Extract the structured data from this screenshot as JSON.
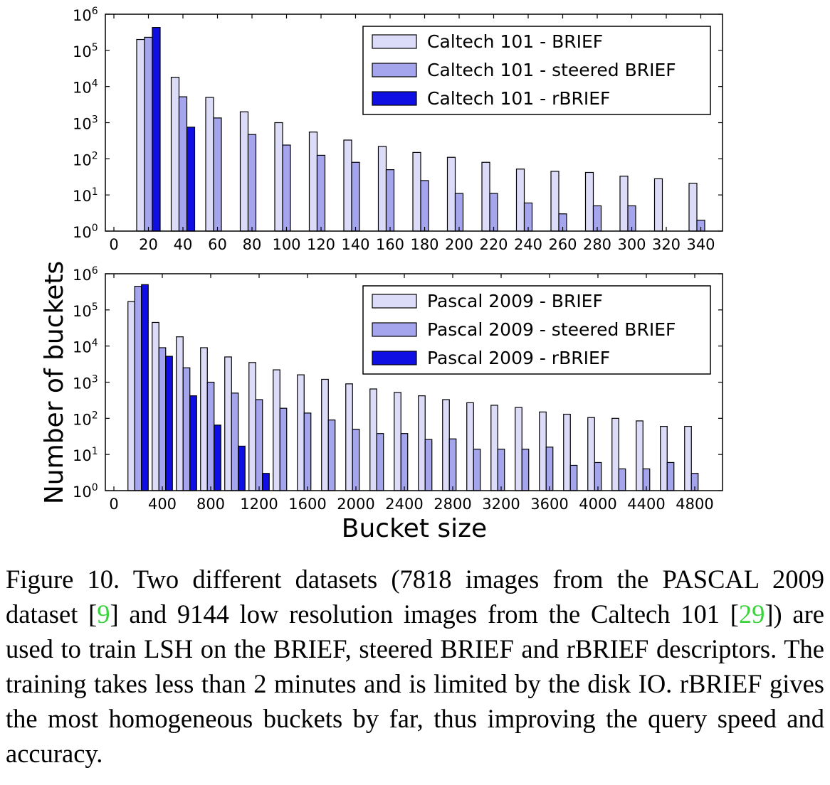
{
  "figure": {
    "ylabel": "Number of buckets",
    "xlabel": "Bucket size"
  },
  "chart_data": [
    {
      "type": "bar",
      "scale": "log",
      "x_ticks": [
        "0",
        "20",
        "40",
        "60",
        "80",
        "100",
        "120",
        "140",
        "160",
        "180",
        "200",
        "220",
        "240",
        "260",
        "280",
        "300",
        "320",
        "340"
      ],
      "ylim": [
        1,
        1000000
      ],
      "y_ticks": [
        "10",
        "10",
        "10",
        "10",
        "10",
        "10",
        "10"
      ],
      "y_tick_exponents": [
        "0",
        "1",
        "2",
        "3",
        "4",
        "5",
        "6"
      ],
      "legend_position": "upper-right",
      "x": [
        20,
        40,
        60,
        80,
        100,
        120,
        140,
        160,
        180,
        200,
        220,
        240,
        260,
        280,
        300,
        320,
        340
      ],
      "series": [
        {
          "name": "Caltech 101 - BRIEF",
          "color": "#dcdcf8",
          "values": [
            200000,
            18000,
            5000,
            2000,
            1000,
            550,
            330,
            220,
            150,
            110,
            80,
            52,
            45,
            42,
            33,
            28,
            21
          ]
        },
        {
          "name": "Caltech 101 - steered BRIEF",
          "color": "#a5a5ee",
          "values": [
            230000,
            5200,
            1350,
            470,
            240,
            125,
            80,
            50,
            25,
            11,
            11,
            6,
            3,
            5,
            5,
            null,
            2
          ]
        },
        {
          "name": "Caltech 101 - rBRIEF",
          "color": "#0f0fe3",
          "values": [
            430000,
            750,
            null,
            null,
            null,
            null,
            null,
            null,
            null,
            null,
            null,
            null,
            null,
            null,
            null,
            null,
            null
          ]
        }
      ]
    },
    {
      "type": "bar",
      "scale": "log",
      "x_ticks": [
        "0",
        "400",
        "800",
        "1200",
        "1600",
        "2000",
        "2400",
        "2800",
        "3200",
        "3600",
        "4000",
        "4400",
        "4800"
      ],
      "ylim": [
        1,
        1000000
      ],
      "y_ticks": [
        "10",
        "10",
        "10",
        "10",
        "10",
        "10",
        "10"
      ],
      "y_tick_exponents": [
        "0",
        "1",
        "2",
        "3",
        "4",
        "5",
        "6"
      ],
      "legend_position": "upper-right",
      "x": [
        200,
        400,
        600,
        800,
        1000,
        1200,
        1400,
        1600,
        1800,
        2000,
        2200,
        2400,
        2600,
        2800,
        3000,
        3200,
        3400,
        3600,
        3800,
        4000,
        4200,
        4400,
        4600,
        4800
      ],
      "series": [
        {
          "name": "Pascal 2009 - BRIEF",
          "color": "#dcdcf8",
          "values": [
            170000,
            45000,
            18000,
            9000,
            5000,
            3500,
            2200,
            1600,
            1200,
            900,
            650,
            520,
            420,
            330,
            270,
            230,
            200,
            150,
            130,
            105,
            100,
            85,
            60,
            60
          ]
        },
        {
          "name": "Pascal 2009 - steered BRIEF",
          "color": "#a5a5ee",
          "values": [
            450000,
            9000,
            2500,
            1000,
            500,
            330,
            190,
            140,
            90,
            50,
            38,
            38,
            26,
            27,
            14,
            14,
            14,
            16,
            5,
            6,
            4,
            4,
            6,
            3
          ]
        },
        {
          "name": "Pascal 2009 - rBRIEF",
          "color": "#0f0fe3",
          "values": [
            500000,
            5200,
            420,
            65,
            17,
            3,
            null,
            null,
            null,
            null,
            null,
            null,
            null,
            null,
            null,
            null,
            null,
            null,
            null,
            null,
            null,
            null,
            null,
            null
          ]
        }
      ]
    }
  ],
  "caption": {
    "before_cite1": "Figure 10. Two different datasets (7818 images from the PASCAL 2009 dataset [",
    "cite1": "9",
    "between": "] and 9144 low resolution images from the Caltech 101 [",
    "cite2": "29",
    "after_cite2": "]) are used to train LSH on the BRIEF, steered BRIEF and rBRIEF descriptors.  The training takes less than 2 minutes and is limited by the disk IO. rBRIEF gives the most homogeneous buckets by far, thus improving the query speed and accuracy."
  }
}
